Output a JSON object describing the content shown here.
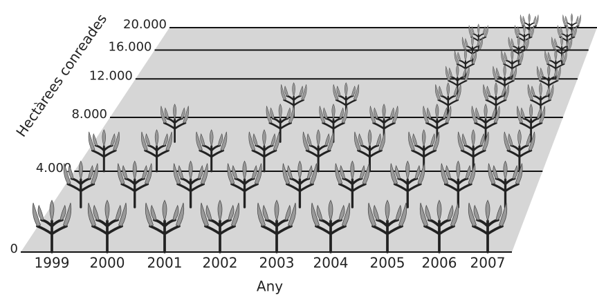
{
  "chart_data": {
    "type": "pictograph",
    "y_label": "Hectàrees conreades",
    "x_label": "Any",
    "categories": [
      "1999",
      "2000",
      "2001",
      "2002",
      "2003",
      "2004",
      "2005",
      "2006",
      "2007"
    ],
    "values": [
      6000,
      8000,
      6000,
      10000,
      10000,
      8000,
      18000,
      20000,
      20000
    ],
    "ylim": [
      0,
      20000
    ],
    "yticks": [
      0,
      {
        "value": 4000,
        "label": "4.000"
      },
      {
        "value": 8000,
        "label": "8.000"
      },
      {
        "value": 12000,
        "label": "12.000"
      },
      {
        "value": 16000,
        "label": "16.000"
      },
      {
        "value": 20000,
        "label": "20.000"
      }
    ],
    "grid": true
  }
}
